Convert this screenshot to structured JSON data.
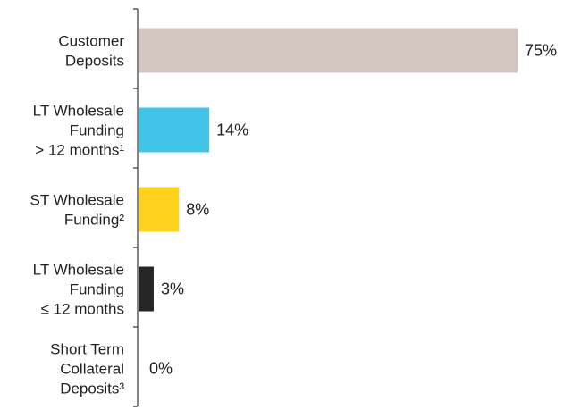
{
  "chart_data": {
    "type": "bar",
    "orientation": "horizontal",
    "categories": [
      [
        "Customer",
        "Deposits"
      ],
      [
        "LT Wholesale",
        "Funding",
        "> 12 months¹"
      ],
      [
        "ST Wholesale",
        "Funding²"
      ],
      [
        "LT Wholesale",
        "Funding",
        "≤ 12 months"
      ],
      [
        "Short Term",
        "Collateral",
        "Deposits³"
      ]
    ],
    "values": [
      75,
      14,
      8,
      3,
      0
    ],
    "value_labels": [
      "75%",
      "14%",
      "8%",
      "3%",
      "0%"
    ],
    "colors": [
      "#d4c6c1",
      "#40c4e8",
      "#ffd21f",
      "#262626",
      "#cccccc"
    ],
    "axis_color": "#333333",
    "xlim": [
      0,
      75
    ],
    "grid": false,
    "legend": "none"
  }
}
